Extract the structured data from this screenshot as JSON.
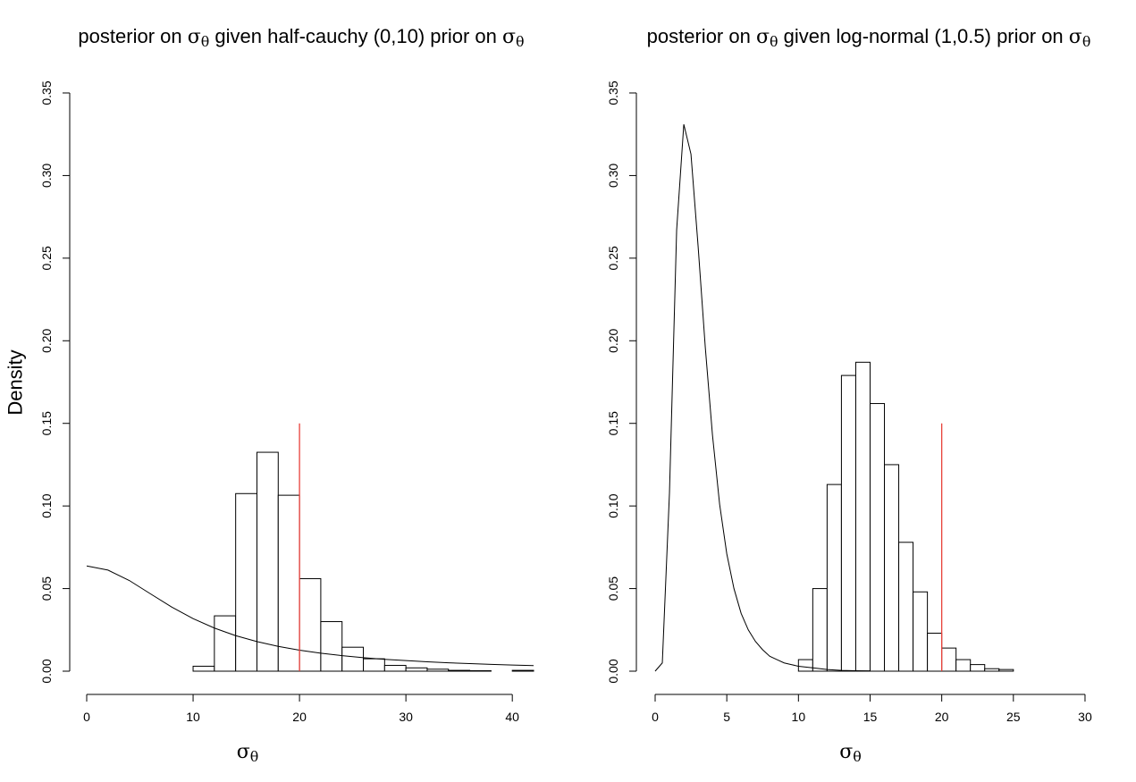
{
  "page": {
    "y_axis_label": "Density"
  },
  "chart_data": [
    {
      "type": "histogram",
      "title_parts": [
        "posterior on ",
        "σ",
        "θ",
        " given half-cauchy (0,10) prior on  ",
        "σ",
        "θ"
      ],
      "xlabel_parts": [
        "σ",
        "θ"
      ],
      "ylabel": "Density",
      "xlim": [
        0,
        42
      ],
      "ylim": [
        0,
        0.35
      ],
      "xticks": [
        0,
        10,
        20,
        30,
        40
      ],
      "yticks": [
        0.0,
        0.05,
        0.1,
        0.15,
        0.2,
        0.25,
        0.3,
        0.35
      ],
      "ytick_labels": [
        "0.00",
        "0.05",
        "0.10",
        "0.15",
        "0.20",
        "0.25",
        "0.30",
        "0.35"
      ],
      "bin_edges": [
        8,
        10,
        12,
        14,
        16,
        18,
        20,
        22,
        24,
        26,
        28,
        30,
        32,
        34,
        36,
        38,
        40,
        42
      ],
      "densities": [
        0.0,
        0.003,
        0.0335,
        0.1075,
        0.1325,
        0.1065,
        0.056,
        0.03,
        0.0145,
        0.0075,
        0.0035,
        0.002,
        0.0012,
        0.0005,
        0.0003,
        0.0,
        0.0005
      ],
      "prior_curve": {
        "name": "half-cauchy (0,10) prior",
        "x": [
          0,
          2,
          4,
          6,
          8,
          10,
          12,
          14,
          16,
          18,
          20,
          22,
          24,
          26,
          28,
          30,
          32,
          34,
          36,
          38,
          40,
          42
        ],
        "y": [
          0.0637,
          0.0612,
          0.0549,
          0.0468,
          0.0388,
          0.0318,
          0.0261,
          0.0215,
          0.0179,
          0.015,
          0.0127,
          0.0109,
          0.0094,
          0.0082,
          0.0072,
          0.0064,
          0.0057,
          0.0051,
          0.0046,
          0.0041,
          0.0037,
          0.0034
        ]
      },
      "reference_line": {
        "x": 20,
        "y_range": [
          0,
          0.15
        ],
        "color": "#e8413a"
      }
    },
    {
      "type": "histogram",
      "title_parts": [
        "posterior on ",
        "σ",
        "θ",
        " given log-normal (1,0.5) prior on ",
        "σ",
        "θ"
      ],
      "xlabel_parts": [
        "σ",
        "θ"
      ],
      "ylabel": "",
      "xlim": [
        0,
        31
      ],
      "ylim": [
        0,
        0.35
      ],
      "xticks": [
        0,
        5,
        10,
        15,
        20,
        25,
        30
      ],
      "yticks": [
        0.0,
        0.05,
        0.1,
        0.15,
        0.2,
        0.25,
        0.3,
        0.35
      ],
      "ytick_labels": [
        "0.00",
        "0.05",
        "0.10",
        "0.15",
        "0.20",
        "0.25",
        "0.30",
        "0.35"
      ],
      "bin_edges": [
        9,
        10,
        11,
        12,
        13,
        14,
        15,
        16,
        17,
        18,
        19,
        20,
        21,
        22,
        23,
        24,
        25,
        26,
        27,
        28,
        29,
        30,
        31
      ],
      "densities": [
        0.0,
        0.007,
        0.05,
        0.113,
        0.179,
        0.187,
        0.162,
        0.125,
        0.078,
        0.048,
        0.023,
        0.014,
        0.007,
        0.004,
        0.0015,
        0.001,
        0.0,
        0.0,
        0.0,
        0.0,
        0.0,
        0.0
      ],
      "prior_curve": {
        "name": "log-normal (1,0.5) prior",
        "x": [
          0,
          0.5,
          1,
          1.5,
          2,
          2.5,
          3,
          3.5,
          4,
          4.5,
          5,
          5.5,
          6,
          6.5,
          7,
          7.5,
          8,
          8.5,
          9,
          9.5,
          10,
          11,
          12,
          13,
          14,
          15
        ],
        "y": [
          0,
          0.005,
          0.108,
          0.267,
          0.331,
          0.313,
          0.257,
          0.196,
          0.143,
          0.101,
          0.071,
          0.05,
          0.035,
          0.025,
          0.018,
          0.013,
          0.009,
          0.007,
          0.005,
          0.004,
          0.003,
          0.002,
          0.001,
          0.0005,
          0.0003,
          0.0002
        ]
      },
      "reference_line": {
        "x": 20,
        "y_range": [
          0,
          0.15
        ],
        "color": "#e8413a"
      }
    }
  ]
}
